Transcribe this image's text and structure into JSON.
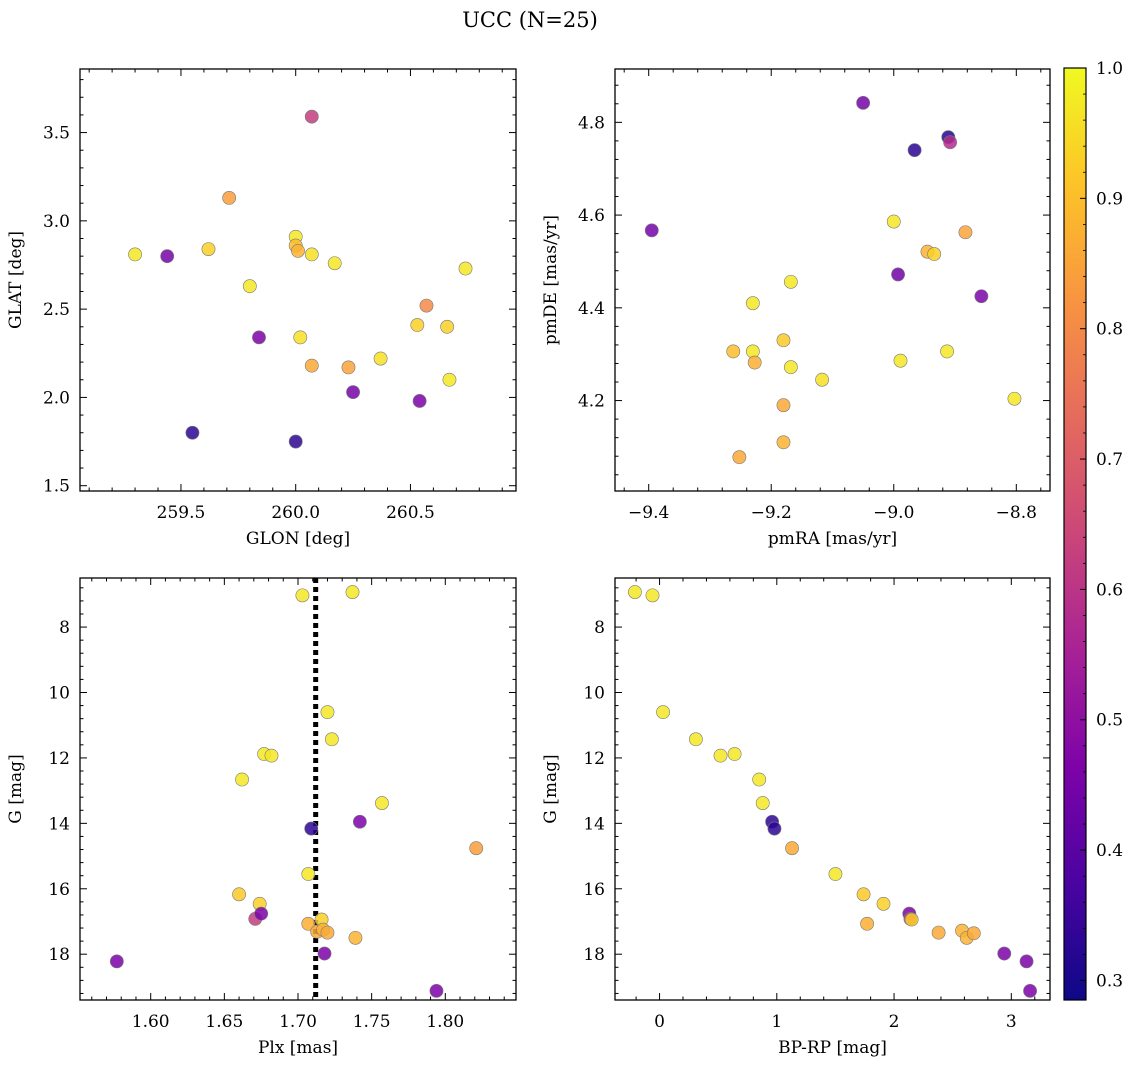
{
  "figure": {
    "title": "UCC (N=25)",
    "colorbar": {
      "ticks": [
        0.3,
        0.4,
        0.5,
        0.6,
        0.7,
        0.8,
        0.9,
        1.0
      ],
      "tick_labels": [
        "0.3",
        "0.4",
        "0.5",
        "0.6",
        "0.7",
        "0.8",
        "0.9",
        "1.0"
      ],
      "range": [
        0.285,
        1.0
      ],
      "colormap": "plasma"
    }
  },
  "chart_data": [
    {
      "type": "scatter",
      "xlabel": "GLON [deg]",
      "ylabel": "GLAT [deg]",
      "xlim": [
        259.06,
        260.96
      ],
      "ylim": [
        1.47,
        3.86
      ],
      "xticks": [
        259.5,
        260.0,
        260.5
      ],
      "xtick_labels": [
        "259.5",
        "260.0",
        "260.5"
      ],
      "yticks": [
        1.5,
        2.0,
        2.5,
        3.0,
        3.5
      ],
      "ytick_labels": [
        "1.5",
        "2.0",
        "2.5",
        "3.0",
        "3.5"
      ],
      "points": [
        {
          "x": 259.3,
          "y": 2.81,
          "c": 0.97
        },
        {
          "x": 259.44,
          "y": 2.8,
          "c": 0.45
        },
        {
          "x": 259.55,
          "y": 1.8,
          "c": 0.33
        },
        {
          "x": 259.62,
          "y": 2.84,
          "c": 0.93
        },
        {
          "x": 259.71,
          "y": 3.13,
          "c": 0.84
        },
        {
          "x": 259.8,
          "y": 2.63,
          "c": 0.97
        },
        {
          "x": 259.84,
          "y": 2.34,
          "c": 0.46
        },
        {
          "x": 260.0,
          "y": 1.75,
          "c": 0.33
        },
        {
          "x": 260.0,
          "y": 2.91,
          "c": 0.97
        },
        {
          "x": 260.0,
          "y": 2.86,
          "c": 0.9
        },
        {
          "x": 260.01,
          "y": 2.83,
          "c": 0.88
        },
        {
          "x": 260.02,
          "y": 2.34,
          "c": 0.96
        },
        {
          "x": 260.07,
          "y": 3.59,
          "c": 0.62
        },
        {
          "x": 260.07,
          "y": 2.81,
          "c": 0.96
        },
        {
          "x": 260.07,
          "y": 2.18,
          "c": 0.86
        },
        {
          "x": 260.17,
          "y": 2.76,
          "c": 0.97
        },
        {
          "x": 260.23,
          "y": 2.17,
          "c": 0.85
        },
        {
          "x": 260.25,
          "y": 2.03,
          "c": 0.45
        },
        {
          "x": 260.37,
          "y": 2.22,
          "c": 0.96
        },
        {
          "x": 260.53,
          "y": 2.41,
          "c": 0.93
        },
        {
          "x": 260.54,
          "y": 1.98,
          "c": 0.46
        },
        {
          "x": 260.57,
          "y": 2.52,
          "c": 0.8
        },
        {
          "x": 260.66,
          "y": 2.4,
          "c": 0.93
        },
        {
          "x": 260.67,
          "y": 2.1,
          "c": 0.97
        },
        {
          "x": 260.74,
          "y": 2.73,
          "c": 0.97
        }
      ]
    },
    {
      "type": "scatter",
      "xlabel": "pmRA [mas/yr]",
      "ylabel": "pmDE [mas/yr]",
      "xlim": [
        -9.455,
        -8.745
      ],
      "ylim": [
        4.005,
        4.915
      ],
      "xticks": [
        -9.4,
        -9.2,
        -9.0,
        -8.8
      ],
      "xtick_labels": [
        "−9.4",
        "−9.2",
        "−9.0",
        "−8.8"
      ],
      "yticks": [
        4.2,
        4.4,
        4.6,
        4.8
      ],
      "ytick_labels": [
        "4.2",
        "4.4",
        "4.6",
        "4.8"
      ],
      "points": [
        {
          "x": -9.395,
          "y": 4.567,
          "c": 0.45
        },
        {
          "x": -9.262,
          "y": 4.306,
          "c": 0.9
        },
        {
          "x": -9.252,
          "y": 4.078,
          "c": 0.86
        },
        {
          "x": -9.23,
          "y": 4.41,
          "c": 0.97
        },
        {
          "x": -9.23,
          "y": 4.306,
          "c": 0.97
        },
        {
          "x": -9.227,
          "y": 4.282,
          "c": 0.87
        },
        {
          "x": -9.18,
          "y": 4.33,
          "c": 0.92
        },
        {
          "x": -9.18,
          "y": 4.19,
          "c": 0.86
        },
        {
          "x": -9.18,
          "y": 4.11,
          "c": 0.88
        },
        {
          "x": -9.168,
          "y": 4.456,
          "c": 0.97
        },
        {
          "x": -9.168,
          "y": 4.272,
          "c": 0.97
        },
        {
          "x": -9.117,
          "y": 4.245,
          "c": 0.96
        },
        {
          "x": -9.05,
          "y": 4.842,
          "c": 0.45
        },
        {
          "x": -9.0,
          "y": 4.586,
          "c": 0.97
        },
        {
          "x": -8.993,
          "y": 4.472,
          "c": 0.44
        },
        {
          "x": -8.989,
          "y": 4.286,
          "c": 0.97
        },
        {
          "x": -8.966,
          "y": 4.74,
          "c": 0.33
        },
        {
          "x": -8.945,
          "y": 4.521,
          "c": 0.88
        },
        {
          "x": -8.934,
          "y": 4.516,
          "c": 0.93
        },
        {
          "x": -8.913,
          "y": 4.306,
          "c": 0.97
        },
        {
          "x": -8.911,
          "y": 4.768,
          "c": 0.32
        },
        {
          "x": -8.908,
          "y": 4.757,
          "c": 0.58
        },
        {
          "x": -8.883,
          "y": 4.563,
          "c": 0.85
        },
        {
          "x": -8.857,
          "y": 4.425,
          "c": 0.46
        },
        {
          "x": -8.803,
          "y": 4.204,
          "c": 0.97
        }
      ]
    },
    {
      "type": "scatter",
      "xlabel": "Plx [mas]",
      "ylabel": "G [mag]",
      "xlim": [
        1.552,
        1.848
      ],
      "ylim": [
        19.4,
        6.5
      ],
      "xticks": [
        1.6,
        1.65,
        1.7,
        1.75,
        1.8
      ],
      "xtick_labels": [
        "1.60",
        "1.65",
        "1.70",
        "1.75",
        "1.80"
      ],
      "yticks": [
        8,
        10,
        12,
        14,
        16,
        18
      ],
      "ytick_labels": [
        "8",
        "10",
        "12",
        "14",
        "16",
        "18"
      ],
      "vline": 1.712,
      "points": [
        {
          "x": 1.577,
          "y": 18.22,
          "c": 0.46
        },
        {
          "x": 1.66,
          "y": 16.17,
          "c": 0.92
        },
        {
          "x": 1.662,
          "y": 12.66,
          "c": 0.97
        },
        {
          "x": 1.671,
          "y": 16.92,
          "c": 0.62
        },
        {
          "x": 1.674,
          "y": 16.46,
          "c": 0.93
        },
        {
          "x": 1.675,
          "y": 16.76,
          "c": 0.46
        },
        {
          "x": 1.677,
          "y": 11.88,
          "c": 0.97
        },
        {
          "x": 1.682,
          "y": 11.93,
          "c": 0.97
        },
        {
          "x": 1.703,
          "y": 7.03,
          "c": 0.97
        },
        {
          "x": 1.707,
          "y": 15.55,
          "c": 0.97
        },
        {
          "x": 1.707,
          "y": 17.07,
          "c": 0.87
        },
        {
          "x": 1.709,
          "y": 14.16,
          "c": 0.33
        },
        {
          "x": 1.713,
          "y": 17.31,
          "c": 0.86
        },
        {
          "x": 1.716,
          "y": 16.94,
          "c": 0.93
        },
        {
          "x": 1.717,
          "y": 17.25,
          "c": 0.88
        },
        {
          "x": 1.718,
          "y": 17.98,
          "c": 0.46
        },
        {
          "x": 1.72,
          "y": 10.6,
          "c": 0.97
        },
        {
          "x": 1.72,
          "y": 17.34,
          "c": 0.86
        },
        {
          "x": 1.723,
          "y": 11.43,
          "c": 0.97
        },
        {
          "x": 1.737,
          "y": 6.93,
          "c": 0.97
        },
        {
          "x": 1.739,
          "y": 17.5,
          "c": 0.88
        },
        {
          "x": 1.742,
          "y": 13.95,
          "c": 0.46
        },
        {
          "x": 1.757,
          "y": 13.38,
          "c": 0.97
        },
        {
          "x": 1.794,
          "y": 19.12,
          "c": 0.46
        },
        {
          "x": 1.821,
          "y": 14.76,
          "c": 0.84
        }
      ]
    },
    {
      "type": "scatter",
      "xlabel": "BP-RP [mag]",
      "ylabel": "G [mag]",
      "xlim": [
        -0.38,
        3.33
      ],
      "ylim": [
        19.4,
        6.5
      ],
      "xticks": [
        0,
        1,
        2,
        3
      ],
      "xtick_labels": [
        "0",
        "1",
        "2",
        "3"
      ],
      "yticks": [
        8,
        10,
        12,
        14,
        16,
        18
      ],
      "ytick_labels": [
        "8",
        "10",
        "12",
        "14",
        "16",
        "18"
      ],
      "points": [
        {
          "x": -0.21,
          "y": 6.93,
          "c": 0.97
        },
        {
          "x": -0.06,
          "y": 7.03,
          "c": 0.97
        },
        {
          "x": 0.03,
          "y": 10.6,
          "c": 0.97
        },
        {
          "x": 0.31,
          "y": 11.43,
          "c": 0.97
        },
        {
          "x": 0.52,
          "y": 11.93,
          "c": 0.97
        },
        {
          "x": 0.64,
          "y": 11.88,
          "c": 0.97
        },
        {
          "x": 0.85,
          "y": 12.66,
          "c": 0.97
        },
        {
          "x": 0.88,
          "y": 13.38,
          "c": 0.97
        },
        {
          "x": 0.96,
          "y": 13.95,
          "c": 0.33
        },
        {
          "x": 0.98,
          "y": 14.16,
          "c": 0.33
        },
        {
          "x": 1.13,
          "y": 14.76,
          "c": 0.86
        },
        {
          "x": 1.5,
          "y": 15.55,
          "c": 0.97
        },
        {
          "x": 1.74,
          "y": 16.17,
          "c": 0.92
        },
        {
          "x": 1.77,
          "y": 17.07,
          "c": 0.87
        },
        {
          "x": 1.91,
          "y": 16.46,
          "c": 0.93
        },
        {
          "x": 2.13,
          "y": 16.76,
          "c": 0.46
        },
        {
          "x": 2.14,
          "y": 16.92,
          "c": 0.62
        },
        {
          "x": 2.15,
          "y": 16.94,
          "c": 0.93
        },
        {
          "x": 2.38,
          "y": 17.34,
          "c": 0.86
        },
        {
          "x": 2.58,
          "y": 17.28,
          "c": 0.88
        },
        {
          "x": 2.62,
          "y": 17.5,
          "c": 0.88
        },
        {
          "x": 2.68,
          "y": 17.36,
          "c": 0.86
        },
        {
          "x": 2.94,
          "y": 17.98,
          "c": 0.46
        },
        {
          "x": 3.13,
          "y": 18.22,
          "c": 0.46
        },
        {
          "x": 3.16,
          "y": 19.12,
          "c": 0.46
        }
      ]
    }
  ]
}
